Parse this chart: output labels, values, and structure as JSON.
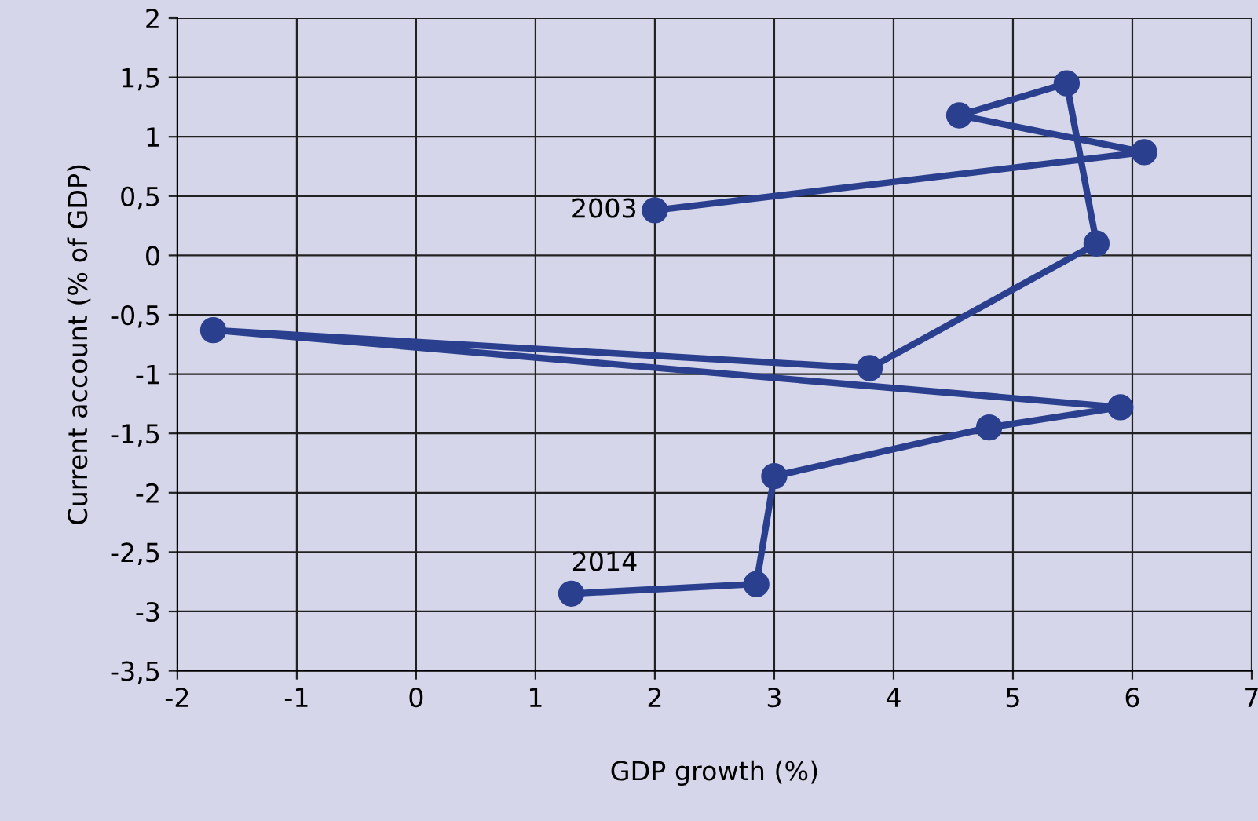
{
  "chart_data": {
    "type": "line",
    "xlabel": "GDP growth (%)",
    "ylabel": "Current account (% of GDP)",
    "x": [
      2.0,
      6.1,
      4.55,
      5.45,
      5.7,
      3.8,
      -1.7,
      5.9,
      4.8,
      3.0,
      2.85,
      1.3
    ],
    "series": [
      {
        "color": "#2b3f8f",
        "values": [
          0.38,
          0.87,
          1.18,
          1.45,
          0.1,
          -0.95,
          -0.63,
          -1.28,
          -1.45,
          -1.86,
          -2.77,
          -2.85
        ]
      }
    ],
    "xlim": [
      -2,
      7
    ],
    "ylim": [
      -3.5,
      2
    ],
    "xticks": [
      -2,
      -1,
      0,
      1,
      2,
      3,
      4,
      5,
      6,
      7
    ],
    "yticks": [
      {
        "value": -3.5,
        "label": "-3,5"
      },
      {
        "value": -3,
        "label": "-3"
      },
      {
        "value": -2.5,
        "label": "-2,5"
      },
      {
        "value": -2,
        "label": "-2"
      },
      {
        "value": -1.5,
        "label": "-1,5"
      },
      {
        "value": -1,
        "label": "-1"
      },
      {
        "value": -0.5,
        "label": "-0,5"
      },
      0,
      {
        "value": 0.5,
        "label": "0,5"
      },
      {
        "value": 1,
        "label": "1"
      },
      {
        "value": 1.5,
        "label": "1,5"
      },
      2
    ],
    "annotations": [
      {
        "text": "2003",
        "x": 2.0,
        "y": 0.38
      },
      {
        "text": "2014",
        "x": 1.3,
        "y": -2.85
      }
    ],
    "grid": true,
    "marker": "circle",
    "line_style": "solid"
  }
}
